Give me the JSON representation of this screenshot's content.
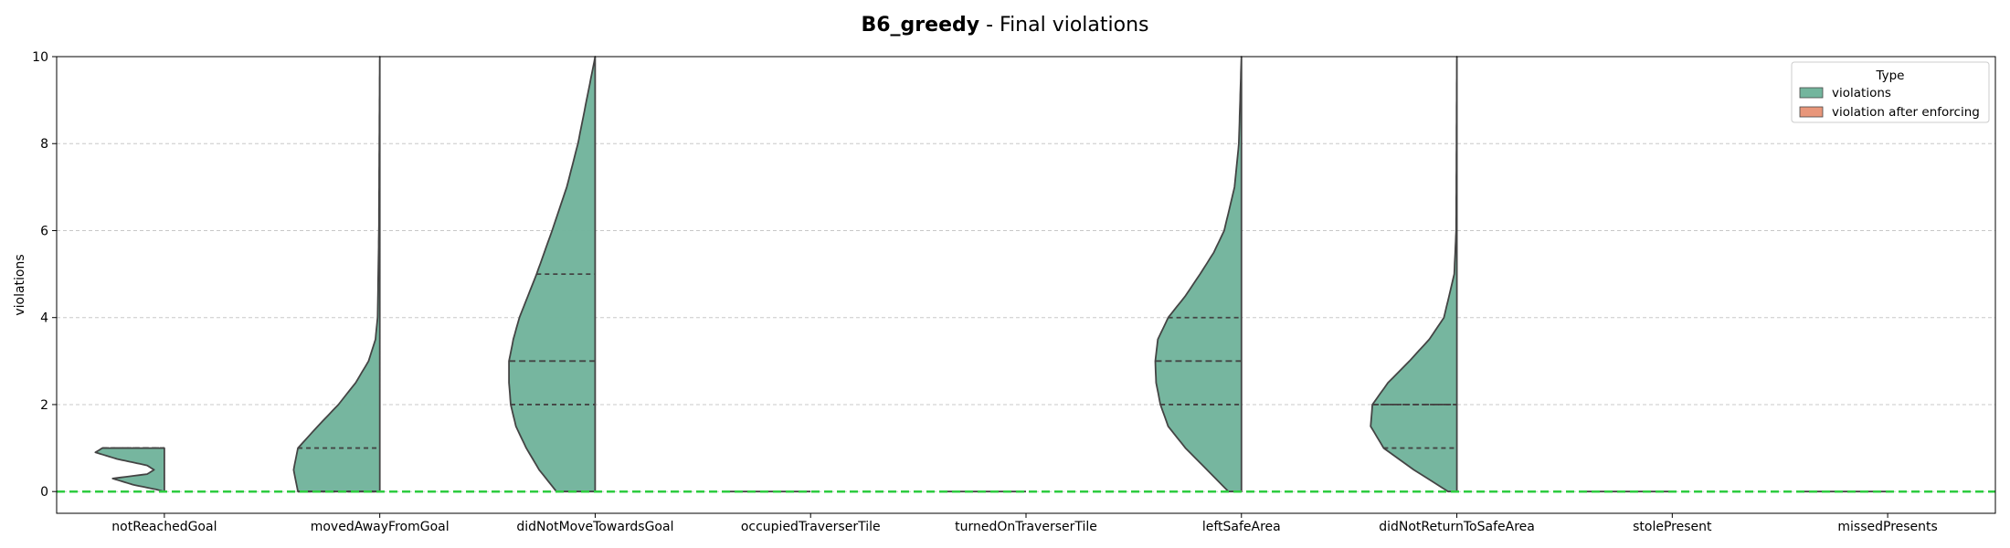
{
  "chart_data": {
    "type": "violin",
    "title_bold": "B6_greedy",
    "title_rest": " - Final violations",
    "xlabel": "",
    "ylabel": "violations",
    "ylim": [
      -0.5,
      10
    ],
    "yticks": [
      0,
      2,
      4,
      6,
      8,
      10
    ],
    "grid": "y-dashed",
    "reference_line": {
      "y": 0,
      "color": "#2ecc40",
      "style": "dashed"
    },
    "categories": [
      "notReachedGoal",
      "movedAwayFromGoal",
      "didNotMoveTowardsGoal",
      "occupiedTraverserTile",
      "turnedOnTraverserTile",
      "leftSafeArea",
      "didNotReturnToSafeArea",
      "stolePresent",
      "missedPresents"
    ],
    "legend": {
      "title": "Type",
      "placement": "upper-right",
      "entries": [
        {
          "label": "violations",
          "color": "#73b59d"
        },
        {
          "label": "violation after enforcing",
          "color": "#e8967a"
        }
      ]
    },
    "series": [
      {
        "name": "violations",
        "color": "#73b59d",
        "violins": [
          {
            "category": "notReachedGoal",
            "profile": [
              [
                0,
                0.0
              ],
              [
                0.05,
                0.1
              ],
              [
                0.15,
                0.35
              ],
              [
                0.3,
                0.6
              ],
              [
                0.4,
                0.2
              ],
              [
                0.5,
                0.12
              ],
              [
                0.6,
                0.2
              ],
              [
                0.75,
                0.55
              ],
              [
                0.9,
                0.8
              ],
              [
                1,
                0.72
              ]
            ],
            "quartiles": [
              0,
              1,
              1
            ]
          },
          {
            "category": "movedAwayFromGoal",
            "profile": [
              [
                0,
                0.95
              ],
              [
                0.5,
                1.0
              ],
              [
                1,
                0.95
              ],
              [
                1.5,
                0.72
              ],
              [
                2,
                0.48
              ],
              [
                2.5,
                0.28
              ],
              [
                3,
                0.13
              ],
              [
                3.5,
                0.05
              ],
              [
                4,
                0.025
              ],
              [
                6,
                0.01
              ],
              [
                10,
                0.0
              ]
            ],
            "quartiles": [
              0,
              0,
              1
            ]
          },
          {
            "category": "didNotMoveTowardsGoal",
            "profile": [
              [
                0,
                0.45
              ],
              [
                0.5,
                0.65
              ],
              [
                1,
                0.8
              ],
              [
                1.5,
                0.92
              ],
              [
                2,
                0.98
              ],
              [
                2.5,
                1.0
              ],
              [
                3,
                1.0
              ],
              [
                3.5,
                0.95
              ],
              [
                4,
                0.88
              ],
              [
                4.5,
                0.78
              ],
              [
                5,
                0.68
              ],
              [
                6,
                0.5
              ],
              [
                7,
                0.33
              ],
              [
                8,
                0.2
              ],
              [
                9,
                0.1
              ],
              [
                10,
                0.0
              ]
            ],
            "quartiles": [
              2,
              3,
              5
            ]
          },
          {
            "category": "occupiedTraverserTile",
            "profile": [
              [
                0,
                1.0
              ]
            ],
            "quartiles": [
              0,
              0,
              0
            ]
          },
          {
            "category": "turnedOnTraverserTile",
            "profile": [
              [
                0,
                1.0
              ]
            ],
            "quartiles": [
              0,
              0,
              0
            ]
          },
          {
            "category": "leftSafeArea",
            "profile": [
              [
                0,
                0.15
              ],
              [
                0.5,
                0.4
              ],
              [
                1,
                0.65
              ],
              [
                1.5,
                0.85
              ],
              [
                2,
                0.94
              ],
              [
                2.5,
                0.99
              ],
              [
                3,
                1.0
              ],
              [
                3.5,
                0.97
              ],
              [
                4,
                0.85
              ],
              [
                4.5,
                0.65
              ],
              [
                5,
                0.48
              ],
              [
                5.5,
                0.32
              ],
              [
                6,
                0.2
              ],
              [
                7,
                0.08
              ],
              [
                8,
                0.03
              ],
              [
                10,
                0.0
              ]
            ],
            "quartiles": [
              2,
              3,
              4
            ]
          },
          {
            "category": "didNotReturnToSafeArea",
            "profile": [
              [
                0,
                0.1
              ],
              [
                0.5,
                0.5
              ],
              [
                1,
                0.85
              ],
              [
                1.5,
                1.0
              ],
              [
                2,
                0.98
              ],
              [
                2.5,
                0.8
              ],
              [
                3,
                0.55
              ],
              [
                3.5,
                0.32
              ],
              [
                4,
                0.15
              ],
              [
                5,
                0.03
              ],
              [
                6,
                0.008
              ],
              [
                10,
                0.0
              ]
            ],
            "quartiles": [
              1,
              2,
              2
            ]
          },
          {
            "category": "stolePresent",
            "profile": [
              [
                0,
                1.0
              ]
            ],
            "quartiles": [
              0,
              0,
              0
            ]
          },
          {
            "category": "missedPresents",
            "profile": [
              [
                0,
                1.0
              ]
            ],
            "quartiles": [
              0,
              0,
              0
            ]
          }
        ]
      },
      {
        "name": "violation after enforcing",
        "color": "#e8967a",
        "violins": []
      }
    ]
  }
}
